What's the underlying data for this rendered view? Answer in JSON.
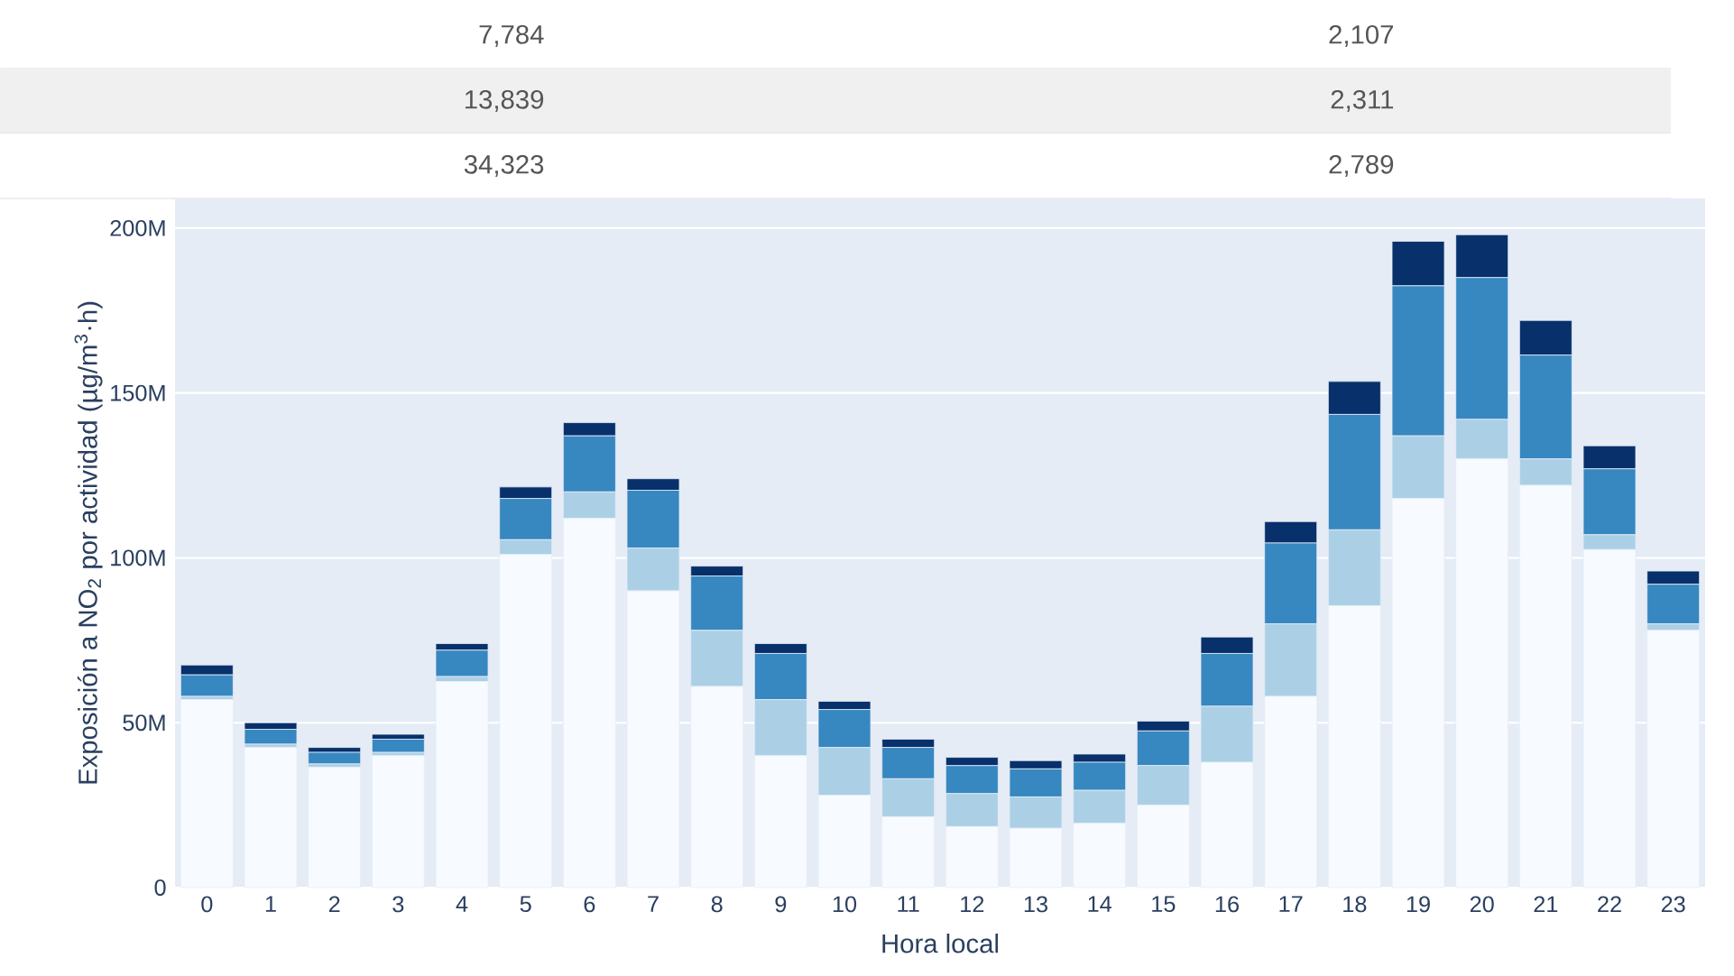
{
  "chart_data": {
    "type": "bar",
    "stacked": true,
    "grid": "y",
    "xlabel": "Hora local",
    "ylabel": "Exposición a NO$_{2}$ por actividad (µg/m$^{3}$·h)",
    "categories": [
      "0",
      "1",
      "2",
      "3",
      "4",
      "5",
      "6",
      "7",
      "8",
      "9",
      "10",
      "11",
      "12",
      "13",
      "14",
      "15",
      "16",
      "17",
      "18",
      "19",
      "20",
      "21",
      "22",
      "23"
    ],
    "ylim": [
      0,
      209000000
    ],
    "yticks": [
      0,
      {
        "value": 50000000,
        "label": "50M"
      },
      {
        "value": 100000000,
        "label": "100M"
      },
      {
        "value": 150000000,
        "label": "150M"
      },
      {
        "value": 200000000,
        "label": "200M"
      }
    ],
    "series": [
      {
        "color": "#f7fbff",
        "values": [
          57000000,
          42500000,
          36500000,
          40000000,
          62500000,
          101000000,
          112000000,
          90000000,
          61000000,
          40000000,
          28000000,
          21500000,
          18500000,
          18000000,
          19500000,
          25000000,
          38000000,
          58000000,
          85500000,
          118000000,
          130000000,
          122000000,
          102500000,
          78000000
        ]
      },
      {
        "color": "#abd0e6",
        "values": [
          1000000,
          1000000,
          1000000,
          1000000,
          1500000,
          4500000,
          8000000,
          13000000,
          17000000,
          17000000,
          14500000,
          11500000,
          10000000,
          9500000,
          10000000,
          12000000,
          17000000,
          22000000,
          23000000,
          19000000,
          12000000,
          8000000,
          4500000,
          2000000
        ]
      },
      {
        "color": "#3787c0",
        "values": [
          6500000,
          4500000,
          3500000,
          4000000,
          8000000,
          12500000,
          17000000,
          17500000,
          16500000,
          14000000,
          11500000,
          9500000,
          8500000,
          8500000,
          8500000,
          10500000,
          16000000,
          24500000,
          35000000,
          45500000,
          43000000,
          31500000,
          20000000,
          12000000
        ]
      },
      {
        "color": "#08306b",
        "values": [
          3000000,
          2000000,
          1500000,
          1500000,
          2000000,
          3500000,
          4000000,
          3500000,
          3000000,
          3000000,
          2500000,
          2500000,
          2500000,
          2500000,
          2500000,
          3000000,
          5000000,
          6500000,
          10000000,
          13500000,
          13000000,
          10500000,
          7000000,
          4000000
        ]
      }
    ],
    "annotations": [
      "7,784",
      "2,107",
      "13,839",
      "2,311",
      "34,323",
      "2,789"
    ]
  }
}
